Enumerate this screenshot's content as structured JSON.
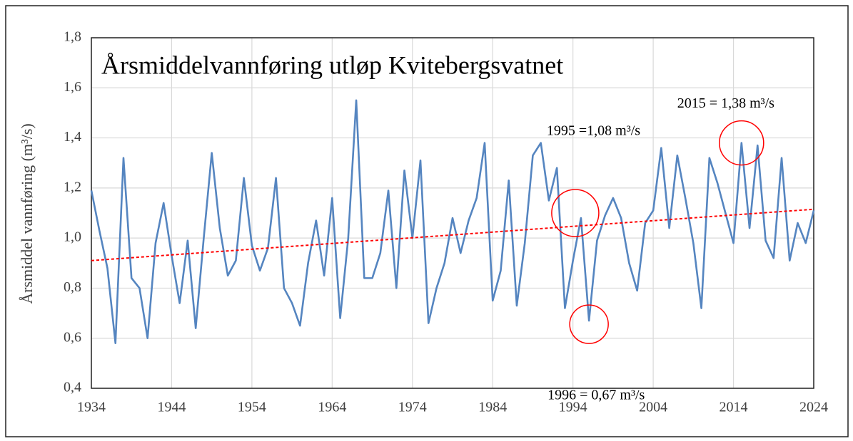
{
  "chart_data": {
    "type": "line",
    "title": "Årsmiddelvannføring utløp Kvitebergsvatnet",
    "y_label": "Årsmiddel vannføring (m³/s)",
    "x": [
      1934,
      1935,
      1936,
      1937,
      1938,
      1939,
      1940,
      1941,
      1942,
      1943,
      1944,
      1945,
      1946,
      1947,
      1948,
      1949,
      1950,
      1951,
      1952,
      1953,
      1954,
      1955,
      1956,
      1957,
      1958,
      1959,
      1960,
      1961,
      1962,
      1963,
      1964,
      1965,
      1966,
      1967,
      1968,
      1969,
      1970,
      1971,
      1972,
      1973,
      1974,
      1975,
      1976,
      1977,
      1978,
      1979,
      1980,
      1981,
      1982,
      1983,
      1984,
      1985,
      1986,
      1987,
      1988,
      1989,
      1990,
      1991,
      1992,
      1993,
      1994,
      1995,
      1996,
      1997,
      1998,
      1999,
      2000,
      2001,
      2002,
      2003,
      2004,
      2005,
      2006,
      2007,
      2008,
      2009,
      2010,
      2011,
      2012,
      2013,
      2014,
      2015,
      2016,
      2017,
      2018,
      2019,
      2020,
      2021,
      2022,
      2023,
      2024
    ],
    "series": [
      {
        "color": "#5585c0",
        "values": [
          1.19,
          1.03,
          0.88,
          0.58,
          1.32,
          0.84,
          0.8,
          0.6,
          0.98,
          1.14,
          0.93,
          0.74,
          0.99,
          0.64,
          1.0,
          1.34,
          1.04,
          0.85,
          0.91,
          1.24,
          0.97,
          0.87,
          0.96,
          1.24,
          0.8,
          0.74,
          0.65,
          0.9,
          1.07,
          0.85,
          1.16,
          0.68,
          1.0,
          1.55,
          0.84,
          0.84,
          0.94,
          1.19,
          0.8,
          1.27,
          1.0,
          1.31,
          0.66,
          0.8,
          0.9,
          1.08,
          0.94,
          1.07,
          1.16,
          1.38,
          0.75,
          0.87,
          1.23,
          0.73,
          0.98,
          1.33,
          1.38,
          1.15,
          1.28,
          0.72,
          0.91,
          1.08,
          0.67,
          0.99,
          1.09,
          1.16,
          1.08,
          0.9,
          0.79,
          1.06,
          1.11,
          1.36,
          1.04,
          1.33,
          1.16,
          0.98,
          0.72,
          1.32,
          1.22,
          1.1,
          0.98,
          1.38,
          1.04,
          1.37,
          0.99,
          0.92,
          1.32,
          0.91,
          1.06,
          0.98,
          1.11
        ]
      }
    ],
    "trendline": {
      "x": [
        1934,
        2024
      ],
      "values": [
        0.91,
        1.115
      ],
      "color": "#ff0000",
      "dashed": true
    },
    "annotations": [
      {
        "text": "2015 = 1,38 m³/s",
        "x": 2015
      },
      {
        "text": "1995 =1,08 m³/s",
        "x": 1995
      },
      {
        "text": "1996 = 0,67 m³/s",
        "x": 1996
      }
    ],
    "annotation_color": "#ff0000",
    "xlim": [
      1934,
      2024
    ],
    "xticks": [
      1934,
      1944,
      1954,
      1964,
      1974,
      1984,
      1994,
      2004,
      2014,
      2024
    ],
    "ylim": [
      0.4,
      1.8
    ],
    "yticks": [
      {
        "value": 0.4,
        "label": "0,4"
      },
      {
        "value": 0.6,
        "label": "0,6"
      },
      {
        "value": 0.8,
        "label": "0,8"
      },
      {
        "value": 1.0,
        "label": "1,0"
      },
      {
        "value": 1.2,
        "label": "1,2"
      },
      {
        "value": 1.4,
        "label": "1,4"
      },
      {
        "value": 1.6,
        "label": "1,6"
      },
      {
        "value": 1.8,
        "label": "1,8"
      }
    ],
    "grid": true
  }
}
